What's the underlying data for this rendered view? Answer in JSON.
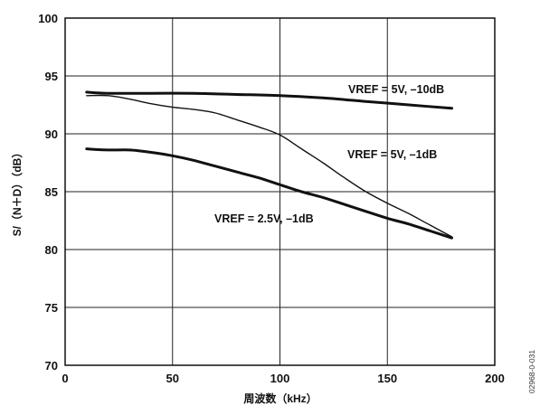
{
  "chart_data": {
    "type": "line",
    "title": "",
    "xlabel": "周波数（kHz）",
    "ylabel": "S/（N＋D）（dB）",
    "xlim": [
      0,
      200
    ],
    "ylim": [
      70,
      100
    ],
    "xticks": [
      0,
      50,
      100,
      150,
      200
    ],
    "yticks": [
      70,
      75,
      80,
      85,
      90,
      95,
      100
    ],
    "grid": true,
    "series": [
      {
        "name": "VREF = 5V, –10dB",
        "stroke": "thick",
        "points": [
          [
            10,
            93.6
          ],
          [
            20,
            93.5
          ],
          [
            40,
            93.5
          ],
          [
            60,
            93.5
          ],
          [
            80,
            93.4
          ],
          [
            100,
            93.3
          ],
          [
            120,
            93.1
          ],
          [
            140,
            92.8
          ],
          [
            160,
            92.5
          ],
          [
            180,
            92.2
          ]
        ]
      },
      {
        "name": "VREF = 5V, –1dB",
        "stroke": "thin",
        "points": [
          [
            10,
            93.3
          ],
          [
            20,
            93.3
          ],
          [
            30,
            93.0
          ],
          [
            40,
            92.6
          ],
          [
            50,
            92.3
          ],
          [
            60,
            92.1
          ],
          [
            70,
            91.8
          ],
          [
            80,
            91.2
          ],
          [
            90,
            90.6
          ],
          [
            100,
            89.9
          ],
          [
            110,
            88.7
          ],
          [
            120,
            87.5
          ],
          [
            130,
            86.2
          ],
          [
            140,
            85.0
          ],
          [
            150,
            84.0
          ],
          [
            160,
            83.1
          ],
          [
            170,
            82.1
          ],
          [
            180,
            81.1
          ]
        ]
      },
      {
        "name": "VREF = 2.5V, –1dB",
        "stroke": "thick",
        "points": [
          [
            10,
            88.7
          ],
          [
            20,
            88.6
          ],
          [
            30,
            88.6
          ],
          [
            40,
            88.4
          ],
          [
            50,
            88.1
          ],
          [
            60,
            87.7
          ],
          [
            70,
            87.2
          ],
          [
            80,
            86.7
          ],
          [
            90,
            86.2
          ],
          [
            100,
            85.6
          ],
          [
            110,
            85.0
          ],
          [
            120,
            84.5
          ],
          [
            130,
            83.9
          ],
          [
            140,
            83.3
          ],
          [
            150,
            82.7
          ],
          [
            160,
            82.2
          ],
          [
            170,
            81.6
          ],
          [
            180,
            81.0
          ]
        ]
      }
    ]
  },
  "figure_id": "02968-0-031"
}
